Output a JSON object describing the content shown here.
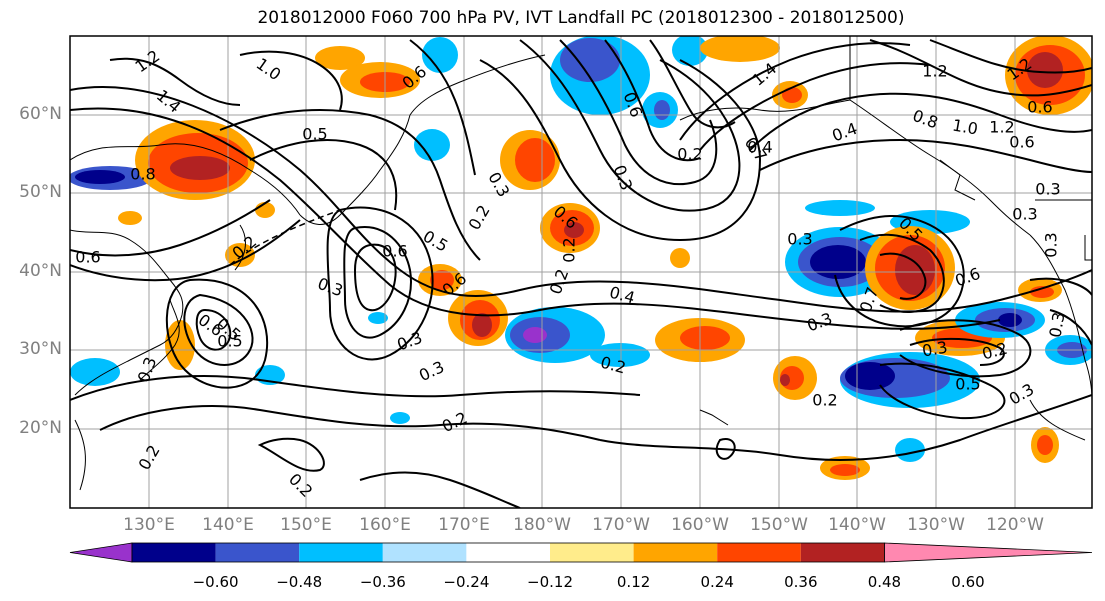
{
  "title": "2018012000 F060 700 hPa PV, IVT Landfall PC (2018012300 - 2018012500)",
  "lat_labels": [
    "60°N",
    "50°N",
    "40°N",
    "30°N",
    "20°N"
  ],
  "lon_labels": [
    "130°E",
    "140°E",
    "150°E",
    "160°E",
    "170°E",
    "180°W",
    "170°W",
    "160°W",
    "150°W",
    "140°W",
    "130°W",
    "120°W"
  ],
  "colorbar": {
    "labels": [
      "−0.60",
      "−0.48",
      "−0.36",
      "−0.24",
      "−0.12",
      "0.12",
      "0.24",
      "0.36",
      "0.48",
      "0.60"
    ],
    "colors": [
      "#9932CC",
      "#00008B",
      "#3A55CC",
      "#00BFFF",
      "#B0E2FF",
      "#FFFFFF",
      "#FFEC8B",
      "#FFA500",
      "#FF4500",
      "#B22222",
      "#FF88B0"
    ]
  },
  "contour_labels": [
    "1.2",
    "1.0",
    "1.4",
    "0.5",
    "0.8",
    "0.6",
    "0.6",
    "0.3",
    "0.5",
    "0.6",
    "0.2",
    "0.3",
    "0.6",
    "0.2",
    "0.4",
    "0.2",
    "0.5",
    "0.3",
    "0.2",
    "0.6",
    "0.6",
    "0.3",
    "0.2",
    "0.6",
    "0.3",
    "0.5",
    "0.3",
    "0.4",
    "0.7",
    "0.2",
    "0.2",
    "0.2",
    "0.3",
    "0.2",
    "1.2",
    "1.4",
    "0.4",
    "0.7",
    "1.2",
    "0.8",
    "1.0",
    "1.2",
    "0.6",
    "0.5",
    "0.3",
    "0.6",
    "0.3",
    "0.3",
    "0.5",
    "0.3",
    "0.3",
    "0.3",
    "0.3",
    "0.2",
    "0.2",
    "0.6"
  ]
}
